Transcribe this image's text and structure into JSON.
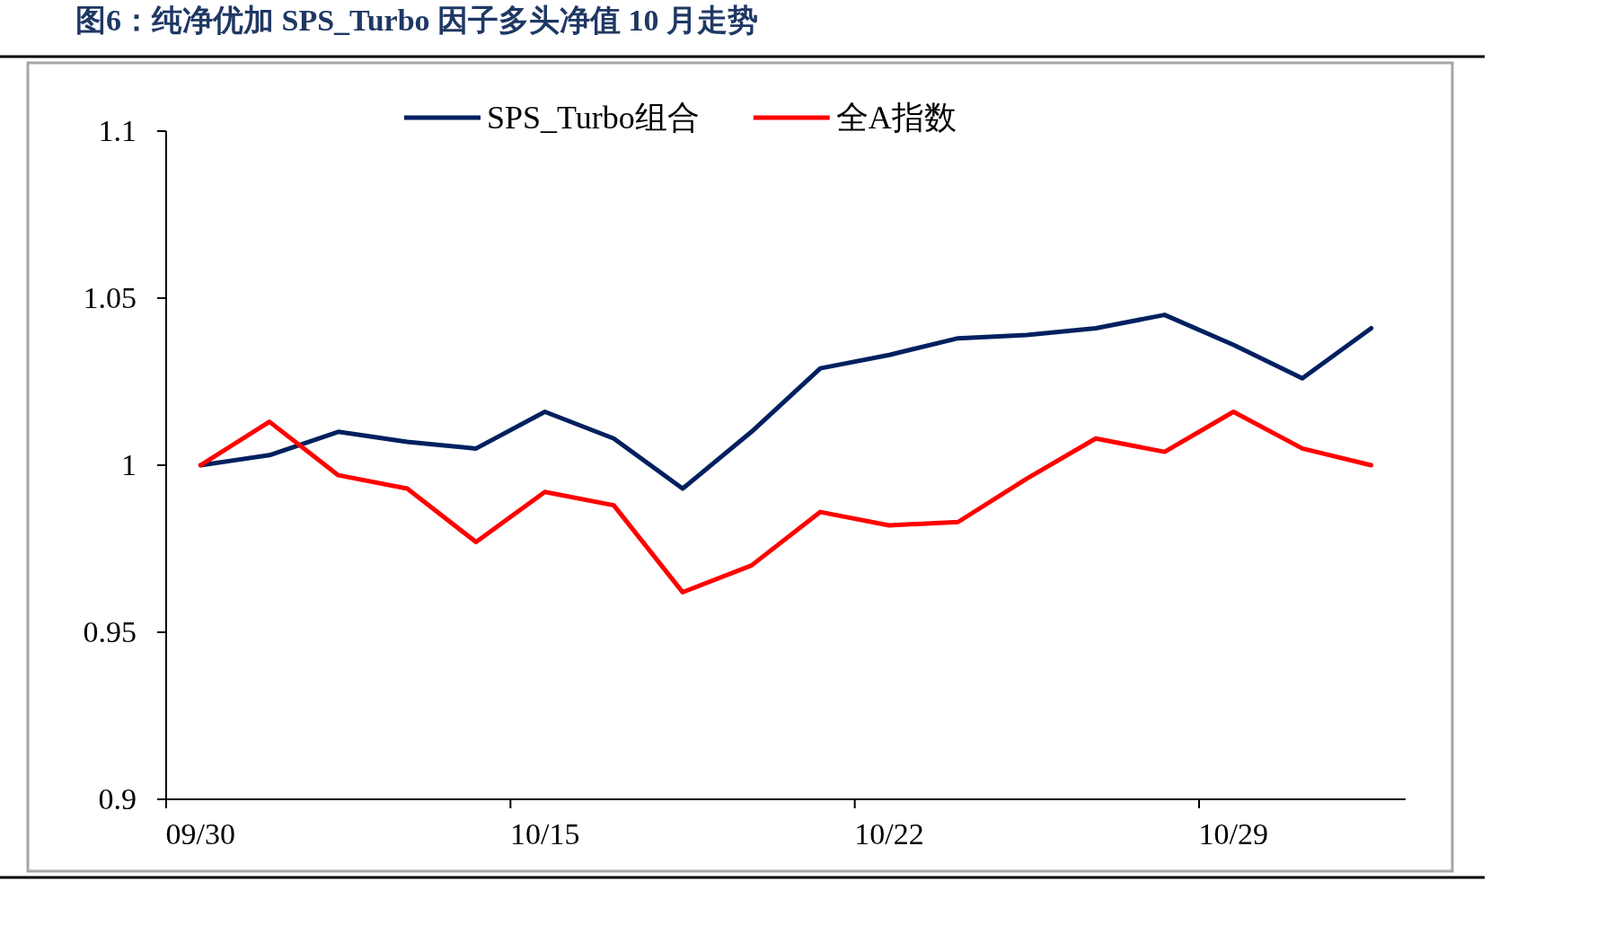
{
  "chart_data": {
    "type": "line",
    "title": "图6：纯净优加 SPS_Turbo 因子多头净值 10 月走势",
    "categories": [
      "09/30",
      null,
      null,
      null,
      null,
      "10/15",
      null,
      null,
      null,
      null,
      "10/22",
      null,
      null,
      null,
      null,
      "10/29",
      null,
      null
    ],
    "series": [
      {
        "name": "SPS_Turbo组合",
        "color": "#002060",
        "values": [
          1.0,
          1.003,
          1.01,
          1.007,
          1.005,
          1.016,
          1.008,
          0.993,
          1.01,
          1.029,
          1.033,
          1.038,
          1.039,
          1.041,
          1.045,
          1.036,
          1.026,
          1.041
        ]
      },
      {
        "name": "全A指数",
        "color": "#ff0000",
        "values": [
          1.0,
          1.013,
          0.997,
          0.993,
          0.977,
          0.992,
          0.988,
          0.962,
          0.97,
          0.986,
          0.982,
          0.983,
          0.996,
          1.008,
          1.004,
          1.016,
          1.005,
          1.0
        ]
      }
    ],
    "ylim": [
      0.9,
      1.1
    ],
    "yticks": [
      0.9,
      0.95,
      1,
      1.05,
      1.1
    ],
    "legend": "top",
    "grid": false,
    "marker": "none",
    "line_style": "solid"
  }
}
